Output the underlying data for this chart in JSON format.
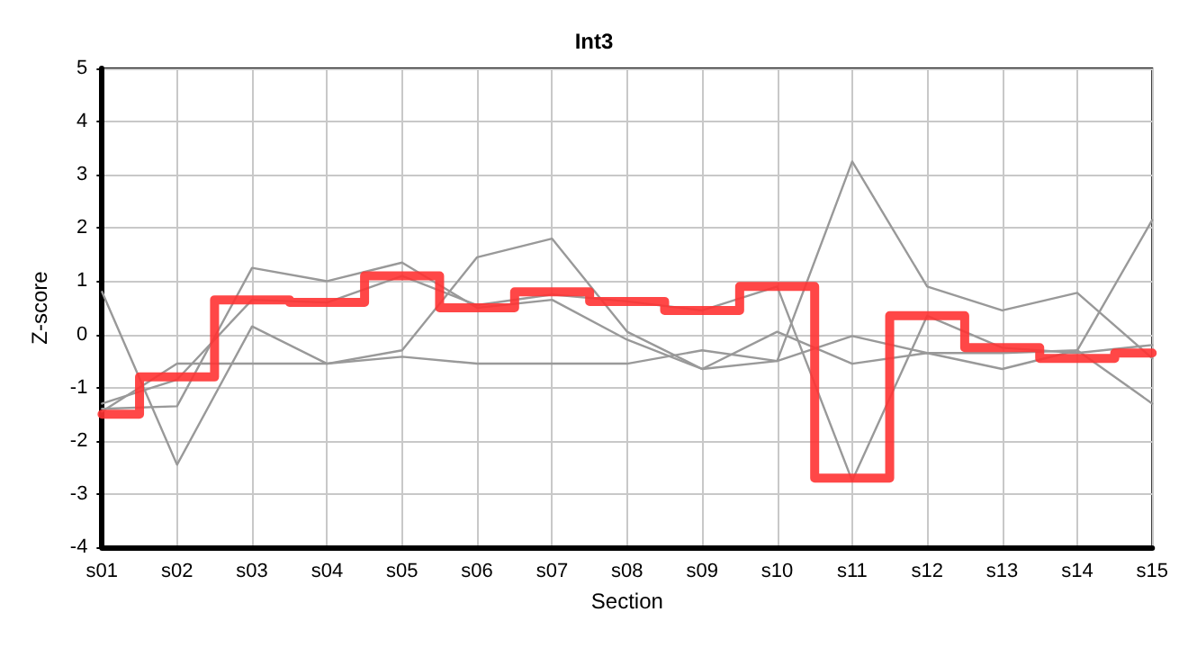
{
  "chart_data": {
    "type": "line",
    "title": "Int3",
    "xlabel": "Section",
    "ylabel": "Z-score",
    "categories": [
      "s01",
      "s02",
      "s03",
      "s04",
      "s05",
      "s06",
      "s07",
      "s08",
      "s09",
      "s10",
      "s11",
      "s12",
      "s13",
      "s14",
      "s15"
    ],
    "ylim": [
      -4,
      5
    ],
    "yticks": [
      -4,
      -3,
      -2,
      -1,
      0,
      1,
      2,
      3,
      4,
      5
    ],
    "grid": true,
    "marker": "none",
    "series": [
      {
        "color": "#999999",
        "values": [
          0.8,
          -2.45,
          0.15,
          -0.55,
          -0.3,
          1.45,
          1.8,
          0.05,
          -0.65,
          -0.5,
          3.25,
          0.9,
          0.45,
          0.78,
          -0.45
        ]
      },
      {
        "color": "#999999",
        "values": [
          -1.3,
          -0.85,
          0.65,
          0.6,
          1.1,
          0.55,
          0.75,
          0.62,
          0.45,
          0.9,
          -2.75,
          0.35,
          -0.25,
          -0.35,
          -0.2
        ]
      },
      {
        "color": "#999999",
        "values": [
          -1.4,
          -1.35,
          1.25,
          1.0,
          1.35,
          0.5,
          0.65,
          -0.1,
          -0.65,
          0.05,
          -0.55,
          -0.35,
          -0.65,
          -0.3,
          -1.3
        ]
      },
      {
        "color": "#999999",
        "values": [
          -1.45,
          -0.55,
          -0.55,
          -0.55,
          -0.42,
          -0.55,
          -0.55,
          -0.55,
          -0.3,
          -0.5,
          -0.03,
          -0.35,
          -0.35,
          -0.3,
          2.15
        ]
      },
      {
        "type": "step",
        "color": "#ff3333",
        "values": [
          -1.5,
          -0.8,
          0.65,
          0.6,
          1.1,
          0.5,
          0.8,
          0.62,
          0.45,
          0.9,
          -2.7,
          0.35,
          -0.25,
          -0.45,
          -0.35
        ]
      }
    ]
  }
}
